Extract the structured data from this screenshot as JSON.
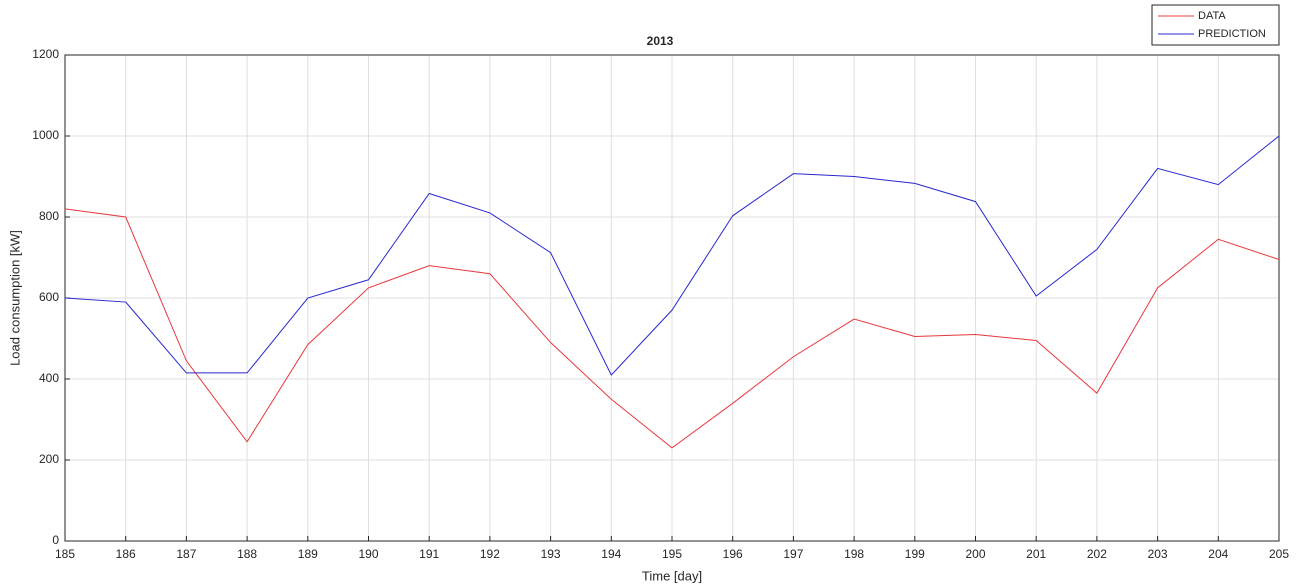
{
  "chart_data": {
    "type": "line",
    "title": "2013",
    "x_label": "Time [day]",
    "y_label": "Load consumption [kW]",
    "x": [
      185,
      186,
      187,
      188,
      189,
      190,
      191,
      192,
      193,
      194,
      195,
      196,
      197,
      198,
      199,
      200,
      201,
      202,
      203,
      204,
      205
    ],
    "series": [
      {
        "name": "DATA",
        "color": "#e8383d",
        "values": [
          820,
          800,
          445,
          245,
          485,
          625,
          680,
          660,
          490,
          350,
          230,
          340,
          455,
          548,
          505,
          510,
          495,
          365,
          625,
          745,
          695
        ]
      },
      {
        "name": "PREDICTION",
        "color": "#2828d0",
        "values": [
          600,
          590,
          415,
          415,
          600,
          645,
          858,
          810,
          712,
          410,
          570,
          803,
          907,
          900,
          883,
          838,
          605,
          720,
          920,
          880,
          1000
        ]
      }
    ],
    "xlim": [
      185,
      205
    ],
    "xticks": [
      185,
      186,
      187,
      188,
      189,
      190,
      191,
      192,
      193,
      194,
      195,
      196,
      197,
      198,
      199,
      200,
      201,
      202,
      203,
      204,
      205
    ],
    "ylim": [
      0,
      1200
    ],
    "yticks": [
      0,
      200,
      400,
      600,
      800,
      1000,
      1200
    ],
    "grid": true,
    "legend": "top-right"
  }
}
